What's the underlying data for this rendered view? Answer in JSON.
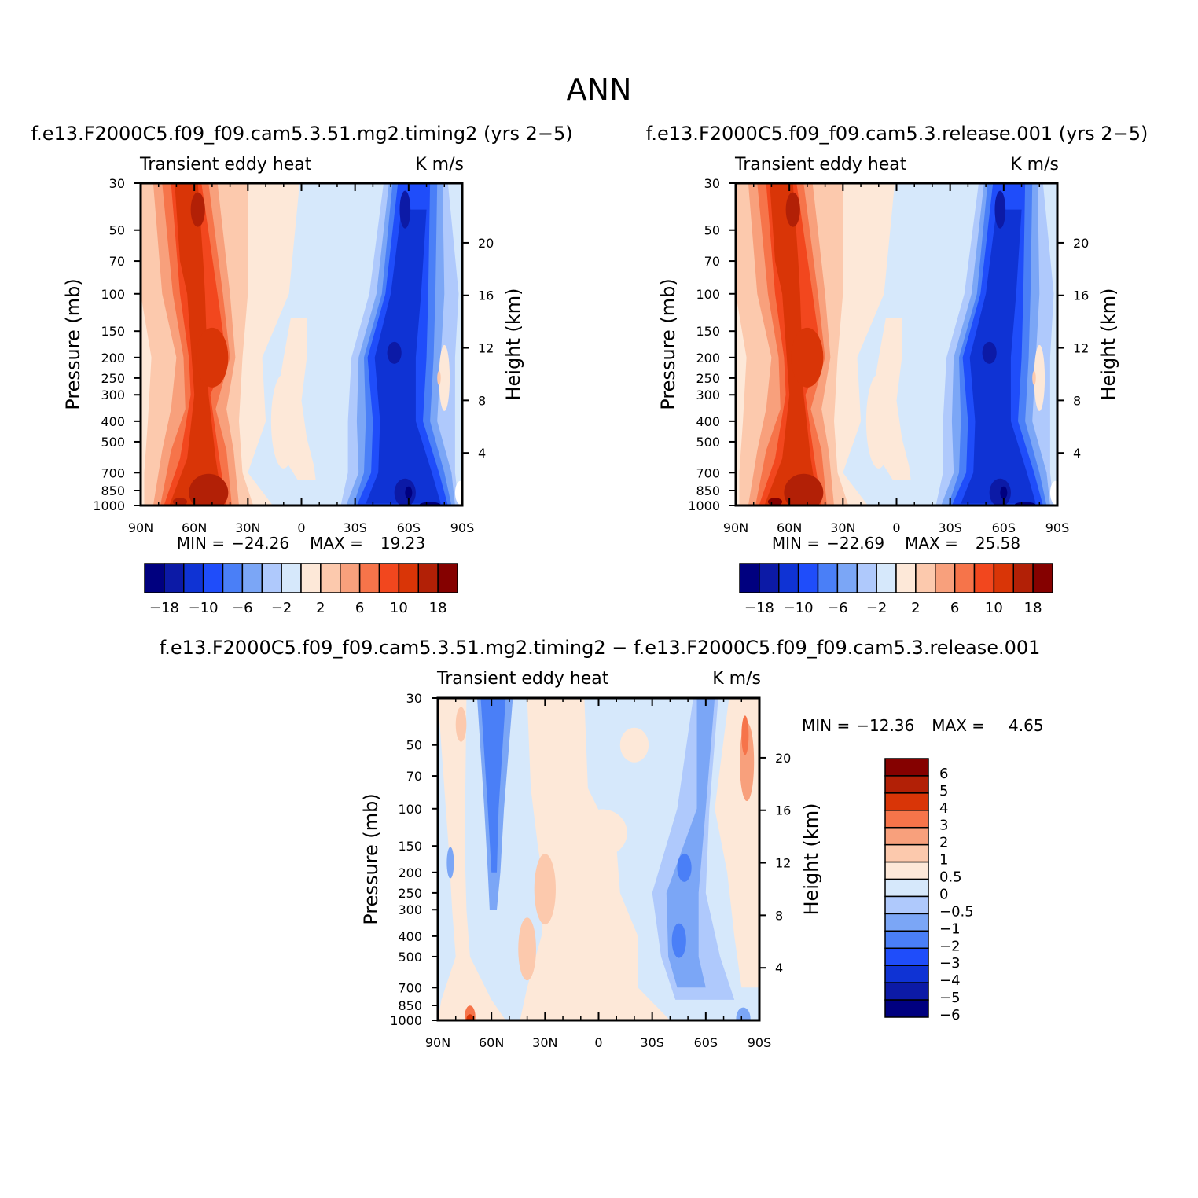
{
  "figure": {
    "title": "ANN"
  },
  "chart_data": [
    {
      "type": "heatmap",
      "title": "f.e13.F2000C5.f09_f09.cam5.3.51.mg2.timing2 (yrs 2−5)",
      "left_label": "Transient eddy heat",
      "right_label": "K m/s",
      "xlabel": "",
      "ylabel": "Pressure (mb)",
      "ylabel_right": "Height (km)",
      "x_ticks": [
        "90N",
        "60N",
        "30N",
        "0",
        "30S",
        "60S",
        "90S"
      ],
      "x_range": [
        90,
        -90
      ],
      "pressure_ticks": [
        30,
        50,
        70,
        100,
        150,
        200,
        250,
        300,
        400,
        500,
        700,
        850,
        1000
      ],
      "height_ticks": [
        4,
        8,
        12,
        16,
        20
      ],
      "y_range_mb": [
        1000,
        30
      ],
      "min_label": "MIN =",
      "min": "−24.26",
      "max_label": "MAX =",
      "max": "19.23",
      "colorbar": {
        "orientation": "horizontal",
        "labels": [
          "−18",
          "−10",
          "−6",
          "−2",
          "2",
          "6",
          "10",
          "18"
        ]
      },
      "features": [
        {
          "lat": 58,
          "p": 40,
          "value": 18
        },
        {
          "lat": 50,
          "p": 170,
          "value": 14
        },
        {
          "lat": 50,
          "p": 850,
          "value": 19
        },
        {
          "lat": -55,
          "p": 45,
          "value": -14
        },
        {
          "lat": -52,
          "p": 180,
          "value": -18
        },
        {
          "lat": -58,
          "p": 850,
          "value": -24
        }
      ]
    },
    {
      "type": "heatmap",
      "title": "f.e13.F2000C5.f09_f09.cam5.3.release.001 (yrs 2−5)",
      "left_label": "Transient eddy heat",
      "right_label": "K m/s",
      "xlabel": "",
      "ylabel": "Pressure (mb)",
      "ylabel_right": "Height (km)",
      "x_ticks": [
        "90N",
        "60N",
        "30N",
        "0",
        "30S",
        "60S",
        "90S"
      ],
      "x_range": [
        90,
        -90
      ],
      "pressure_ticks": [
        30,
        50,
        70,
        100,
        150,
        200,
        250,
        300,
        400,
        500,
        700,
        850,
        1000
      ],
      "height_ticks": [
        4,
        8,
        12,
        16,
        20
      ],
      "y_range_mb": [
        1000,
        30
      ],
      "min_label": "MIN =",
      "min": "−22.69",
      "max_label": "MAX =",
      "max": "25.58",
      "colorbar": {
        "orientation": "horizontal",
        "labels": [
          "−18",
          "−10",
          "−6",
          "−2",
          "2",
          "6",
          "10",
          "18"
        ]
      },
      "features": [
        {
          "lat": 58,
          "p": 40,
          "value": 18
        },
        {
          "lat": 50,
          "p": 170,
          "value": 14
        },
        {
          "lat": 50,
          "p": 850,
          "value": 25
        },
        {
          "lat": -58,
          "p": 45,
          "value": -14
        },
        {
          "lat": -52,
          "p": 180,
          "value": -17
        },
        {
          "lat": -58,
          "p": 850,
          "value": -22
        }
      ]
    },
    {
      "type": "heatmap",
      "title": "f.e13.F2000C5.f09_f09.cam5.3.51.mg2.timing2 − f.e13.F2000C5.f09_f09.cam5.3.release.001",
      "left_label": "Transient eddy heat",
      "right_label": "K m/s",
      "xlabel": "",
      "ylabel": "Pressure (mb)",
      "ylabel_right": "Height (km)",
      "x_ticks": [
        "90N",
        "60N",
        "30N",
        "0",
        "30S",
        "60S",
        "90S"
      ],
      "x_range": [
        90,
        -90
      ],
      "pressure_ticks": [
        30,
        50,
        70,
        100,
        150,
        200,
        250,
        300,
        400,
        500,
        700,
        850,
        1000
      ],
      "height_ticks": [
        4,
        8,
        12,
        16,
        20
      ],
      "y_range_mb": [
        1000,
        30
      ],
      "min_label": "MIN =",
      "min": "−12.36",
      "max_label": "MAX =",
      "max": "4.65",
      "colorbar": {
        "orientation": "vertical",
        "labels": [
          "6",
          "5",
          "4",
          "3",
          "2",
          "1",
          "0.5",
          "0",
          "−0.5",
          "−1",
          "−2",
          "−3",
          "−4",
          "−5",
          "−6"
        ]
      },
      "features": [
        {
          "lat": 58,
          "p": 60,
          "value": -2
        },
        {
          "lat": -82,
          "p": 50,
          "value": 2
        },
        {
          "lat": 28,
          "p": 250,
          "value": 0.8
        },
        {
          "lat": -50,
          "p": 200,
          "value": -2
        },
        {
          "lat": -45,
          "p": 420,
          "value": -3
        },
        {
          "lat": 75,
          "p": 950,
          "value": 3
        }
      ]
    }
  ],
  "colors": {
    "levels16": [
      "#00007f",
      "#0c1aa6",
      "#0f33d4",
      "#1f4dfa",
      "#4a7ff7",
      "#7ba6f6",
      "#afc9fc",
      "#d6e8fb",
      "#fde8d8",
      "#fcc9ad",
      "#f8a07c",
      "#f6744a",
      "#f2471e",
      "#d93507",
      "#b22006",
      "#850100"
    ],
    "diff_levels": [
      "#850100",
      "#b22006",
      "#d93507",
      "#f6744a",
      "#f8a07c",
      "#fcc9ad",
      "#fde8d8",
      "#d6e8fb",
      "#afc9fc",
      "#7ba6f6",
      "#4a7ff7",
      "#1f4dfa",
      "#0f33d4",
      "#0c1aa6",
      "#00007f"
    ]
  }
}
